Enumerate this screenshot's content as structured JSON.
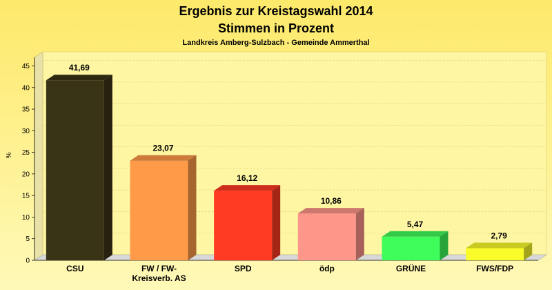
{
  "chart_data": {
    "type": "bar",
    "title": "Ergebnis zur Kreistagswahl 2014",
    "subtitle": "Stimmen in Prozent",
    "subtitle2": "Landkreis Amberg-Sulzbach - Gemeinde Ammerthal",
    "ylabel": "%",
    "xlabel": "",
    "ylim": [
      0,
      47
    ],
    "yticks": [
      "0",
      "5",
      "10",
      "15",
      "20",
      "25",
      "30",
      "35",
      "40",
      "45"
    ],
    "grid": true,
    "categories": [
      [
        "CSU"
      ],
      [
        "FW / FW-",
        "Kreisverb. AS"
      ],
      [
        "SPD"
      ],
      [
        "ödp"
      ],
      [
        "GRÜNE"
      ],
      [
        "FWS/FDP"
      ]
    ],
    "values": [
      41.69,
      23.07,
      16.12,
      10.86,
      5.47,
      2.79
    ],
    "value_labels": [
      "41,69",
      "23,07",
      "16,12",
      "10,86",
      "5,47",
      "2,79"
    ],
    "colors": [
      "#3a3417",
      "#ff9a48",
      "#ff3a22",
      "#ff968a",
      "#3efc5a",
      "#fafc2a"
    ],
    "background_top": "#fde96a",
    "background_bottom": "#fff9b8"
  }
}
